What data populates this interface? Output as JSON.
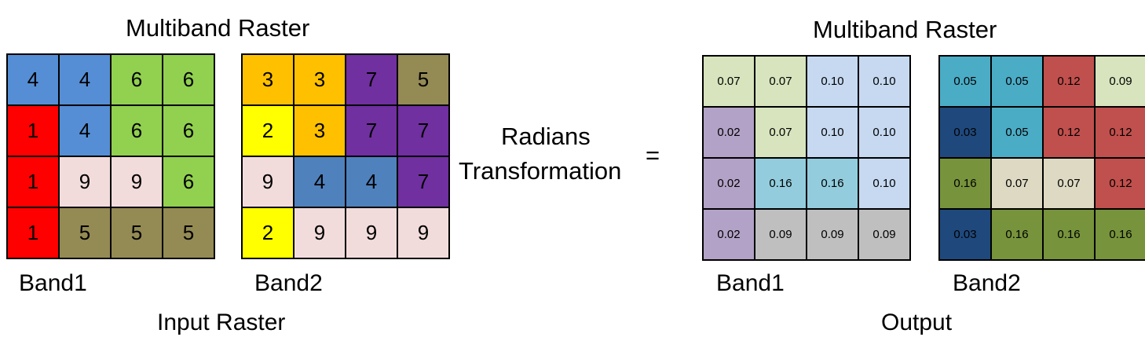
{
  "input": {
    "title": "Multiband Raster",
    "caption": "Input Raster",
    "band1": {
      "label": "Band1",
      "values": [
        [
          "4",
          "4",
          "6",
          "6"
        ],
        [
          "1",
          "4",
          "6",
          "6"
        ],
        [
          "1",
          "9",
          "9",
          "6"
        ],
        [
          "1",
          "5",
          "5",
          "5"
        ]
      ],
      "colors": [
        [
          "#558ed5",
          "#558ed5",
          "#92d050",
          "#92d050"
        ],
        [
          "#ff0000",
          "#558ed5",
          "#92d050",
          "#92d050"
        ],
        [
          "#ff0000",
          "#f2dcdb",
          "#f2dcdb",
          "#92d050"
        ],
        [
          "#ff0000",
          "#948a54",
          "#948a54",
          "#948a54"
        ]
      ]
    },
    "band2": {
      "label": "Band2",
      "values": [
        [
          "3",
          "3",
          "7",
          "5"
        ],
        [
          "2",
          "3",
          "7",
          "7"
        ],
        [
          "9",
          "4",
          "4",
          "7"
        ],
        [
          "2",
          "9",
          "9",
          "9"
        ]
      ],
      "colors": [
        [
          "#ffc000",
          "#ffc000",
          "#7030a0",
          "#948a54"
        ],
        [
          "#ffff00",
          "#ffc000",
          "#7030a0",
          "#7030a0"
        ],
        [
          "#f2dcdb",
          "#4f81bd",
          "#4f81bd",
          "#7030a0"
        ],
        [
          "#ffff00",
          "#f2dcdb",
          "#f2dcdb",
          "#f2dcdb"
        ]
      ]
    }
  },
  "operation": {
    "line1": "Radians",
    "line2": "Transformation",
    "equals": "="
  },
  "output": {
    "title": "Multiband Raster",
    "caption": "Output",
    "band1": {
      "label": "Band1",
      "values": [
        [
          "0.07",
          "0.07",
          "0.10",
          "0.10"
        ],
        [
          "0.02",
          "0.07",
          "0.10",
          "0.10"
        ],
        [
          "0.02",
          "0.16",
          "0.16",
          "0.10"
        ],
        [
          "0.02",
          "0.09",
          "0.09",
          "0.09"
        ]
      ],
      "colors": [
        [
          "#d7e4bd",
          "#d7e4bd",
          "#c6d9f1",
          "#c6d9f1"
        ],
        [
          "#b3a2c7",
          "#d7e4bd",
          "#c6d9f1",
          "#c6d9f1"
        ],
        [
          "#b3a2c7",
          "#93cddd",
          "#93cddd",
          "#c6d9f1"
        ],
        [
          "#b3a2c7",
          "#bfbfbf",
          "#bfbfbf",
          "#bfbfbf"
        ]
      ]
    },
    "band2": {
      "label": "Band2",
      "values": [
        [
          "0.05",
          "0.05",
          "0.12",
          "0.09"
        ],
        [
          "0.03",
          "0.05",
          "0.12",
          "0.12"
        ],
        [
          "0.16",
          "0.07",
          "0.07",
          "0.12"
        ],
        [
          "0.03",
          "0.16",
          "0.16",
          "0.16"
        ]
      ],
      "colors": [
        [
          "#4bacc6",
          "#4bacc6",
          "#c0504d",
          "#d7e4bd"
        ],
        [
          "#1f497d",
          "#4bacc6",
          "#c0504d",
          "#c0504d"
        ],
        [
          "#77933c",
          "#ddd9c3",
          "#ddd9c3",
          "#c0504d"
        ],
        [
          "#1f497d",
          "#77933c",
          "#77933c",
          "#77933c"
        ]
      ]
    }
  }
}
